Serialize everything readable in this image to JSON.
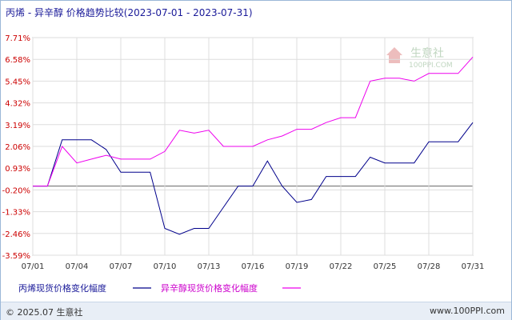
{
  "header": {
    "title": "丙烯 - 异辛醇 价格趋势比较(2023-07-01 - 2023-07-31)"
  },
  "watermark": {
    "brand": "生意社",
    "site": "100PPI.COM"
  },
  "footer": {
    "copyright": "© 2025.07 生意社",
    "url": "www.100PPI.com"
  },
  "colors": {
    "series1": "#00008b",
    "series2": "#ee00ee",
    "axis_labels": "#cc0000",
    "grid": "#dddddd"
  },
  "chart_data": {
    "type": "line",
    "title": "丙烯 - 异辛醇 价格趋势比较(2023-07-01 - 2023-07-31)",
    "xlabel": "",
    "ylabel": "",
    "ylim": [
      -3.59,
      7.71
    ],
    "yticks": [
      7.71,
      6.58,
      5.45,
      4.32,
      3.19,
      2.06,
      0.93,
      -0.2,
      -1.33,
      -2.46,
      -3.59
    ],
    "ytick_labels": [
      "7.71%",
      "6.58%",
      "5.45%",
      "4.32%",
      "3.19%",
      "2.06%",
      "0.93%",
      "-0.20%",
      "-1.33%",
      "-2.46%",
      "-3.59%"
    ],
    "xtick_labels": [
      "07/01",
      "07/04",
      "07/07",
      "07/10",
      "07/13",
      "07/16",
      "07/19",
      "07/22",
      "07/25",
      "07/28",
      "07/31"
    ],
    "x": [
      1,
      2,
      3,
      4,
      5,
      6,
      7,
      8,
      9,
      10,
      11,
      12,
      13,
      14,
      15,
      16,
      17,
      18,
      19,
      20,
      21,
      22,
      23,
      24,
      25,
      26,
      27,
      28,
      29,
      30,
      31
    ],
    "grid": true,
    "legend_position": "bottom",
    "series": [
      {
        "name": "丙烯现货价格变化幅度",
        "values": [
          0,
          0,
          2.4,
          2.4,
          2.4,
          1.9,
          0.72,
          0.72,
          0.72,
          -2.2,
          -2.5,
          -2.2,
          -2.2,
          -1.1,
          0,
          0,
          1.3,
          0,
          -0.85,
          -0.7,
          0.5,
          0.5,
          0.5,
          1.5,
          1.2,
          1.2,
          1.2,
          2.3,
          2.3,
          2.3,
          3.3
        ]
      },
      {
        "name": "异辛醇现货价格变化幅度",
        "values": [
          0,
          0,
          2.06,
          1.2,
          1.4,
          1.6,
          1.4,
          1.4,
          1.4,
          1.8,
          2.9,
          2.75,
          2.9,
          2.06,
          2.06,
          2.06,
          2.4,
          2.6,
          2.95,
          2.95,
          3.3,
          3.55,
          3.55,
          5.45,
          5.6,
          5.6,
          5.45,
          5.85,
          5.85,
          5.85,
          6.7
        ]
      }
    ]
  }
}
